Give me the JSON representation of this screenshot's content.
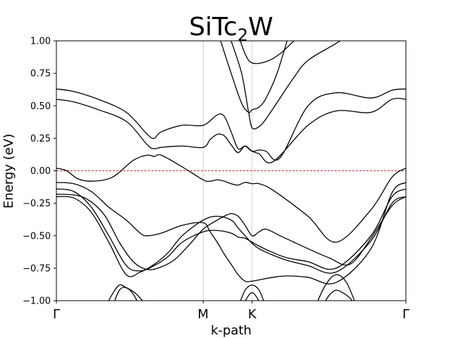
{
  "chart_data": {
    "type": "line",
    "title": {
      "base": "SiTc",
      "sub": "2",
      "tail": "W"
    },
    "xlabel": "k-path",
    "ylabel": "Energy (eV)",
    "ylim": [
      -1.0,
      1.0
    ],
    "xlim": [
      0,
      1
    ],
    "yticks": [
      -1.0,
      -0.75,
      -0.5,
      -0.25,
      0.0,
      0.25,
      0.5,
      0.75,
      1.0
    ],
    "ytick_labels": [
      "−1.00",
      "−0.75",
      "−0.50",
      "−0.25",
      "0.00",
      "0.25",
      "0.50",
      "0.75",
      "1.00"
    ],
    "high_symmetry_points": [
      {
        "label": "Γ",
        "x": 0.0
      },
      {
        "label": "M",
        "x": 0.42
      },
      {
        "label": "K",
        "x": 0.56
      },
      {
        "label": "Γ",
        "x": 1.0
      }
    ],
    "fermi_level": 0.0,
    "fermi_color": "#d62728",
    "band_color": "#000000",
    "grid": false,
    "bands": [
      {
        "x": [
          0.0,
          0.05,
          0.12,
          0.2,
          0.26,
          0.28,
          0.3,
          0.36,
          0.42,
          0.46,
          0.48,
          0.5,
          0.52,
          0.54,
          0.56,
          0.58,
          0.6,
          0.64,
          0.72,
          0.8,
          0.9,
          0.96,
          1.0
        ],
        "y": [
          0.63,
          0.61,
          0.55,
          0.45,
          0.28,
          0.25,
          0.3,
          0.35,
          0.35,
          0.43,
          0.42,
          0.3,
          0.17,
          0.19,
          0.15,
          0.16,
          0.15,
          0.1,
          0.5,
          0.6,
          0.56,
          0.62,
          0.63
        ]
      },
      {
        "x": [
          0.0,
          0.05,
          0.12,
          0.2,
          0.26,
          0.28,
          0.3,
          0.36,
          0.42,
          0.44,
          0.46,
          0.48,
          0.5,
          0.52,
          0.54,
          0.56,
          0.58,
          0.62,
          0.72,
          0.8,
          0.9,
          0.96,
          1.0
        ],
        "y": [
          0.55,
          0.53,
          0.47,
          0.38,
          0.2,
          0.17,
          0.18,
          0.19,
          0.18,
          0.24,
          0.28,
          0.27,
          0.2,
          0.14,
          0.19,
          0.15,
          0.13,
          0.07,
          0.35,
          0.46,
          0.45,
          0.55,
          0.55
        ]
      },
      {
        "x": [
          0.0,
          0.03,
          0.06,
          0.1,
          0.16,
          0.22,
          0.26,
          0.28,
          0.3,
          0.36,
          0.42,
          0.44,
          0.46,
          0.48,
          0.5,
          0.52,
          0.54,
          0.56,
          0.58,
          0.62,
          0.72,
          0.8,
          0.9,
          0.96,
          1.0
        ],
        "y": [
          0.02,
          0.0,
          -0.06,
          -0.08,
          -0.05,
          0.08,
          0.12,
          0.11,
          0.12,
          0.03,
          -0.07,
          -0.08,
          -0.07,
          -0.08,
          -0.1,
          -0.11,
          -0.09,
          -0.1,
          -0.1,
          -0.15,
          -0.35,
          -0.55,
          -0.3,
          -0.05,
          0.02
        ]
      },
      {
        "x": [
          0.0,
          0.05,
          0.1,
          0.15,
          0.2,
          0.24,
          0.26,
          0.3,
          0.36,
          0.42,
          0.44,
          0.46,
          0.48,
          0.5,
          0.52,
          0.54,
          0.56,
          0.58,
          0.62,
          0.66,
          0.72,
          0.8,
          0.9,
          0.96,
          1.0
        ],
        "y": [
          -0.09,
          -0.1,
          -0.16,
          -0.28,
          -0.38,
          -0.48,
          -0.5,
          -0.48,
          -0.42,
          -0.4,
          -0.47,
          -0.55,
          -0.64,
          -0.72,
          -0.8,
          -0.85,
          -0.85,
          -0.84,
          -0.82,
          -0.81,
          -0.82,
          -0.86,
          -0.6,
          -0.17,
          -0.09
        ]
      },
      {
        "x": [
          0.0,
          0.05,
          0.1,
          0.15,
          0.2,
          0.24,
          0.28,
          0.32,
          0.36,
          0.42,
          0.46,
          0.5,
          0.52,
          0.54,
          0.56,
          0.58,
          0.62,
          0.66,
          0.72,
          0.8,
          0.9,
          0.96,
          1.0
        ],
        "y": [
          -0.14,
          -0.16,
          -0.28,
          -0.5,
          -0.73,
          -0.77,
          -0.73,
          -0.66,
          -0.55,
          -0.47,
          -0.46,
          -0.48,
          -0.51,
          -0.52,
          -0.55,
          -0.58,
          -0.63,
          -0.67,
          -0.7,
          -0.75,
          -0.5,
          -0.2,
          -0.14
        ]
      },
      {
        "x": [
          0.0,
          0.05,
          0.1,
          0.15,
          0.2,
          0.24,
          0.28,
          0.32,
          0.36,
          0.42,
          0.46,
          0.5,
          0.52,
          0.54,
          0.56,
          0.58,
          0.62,
          0.66,
          0.72,
          0.8,
          0.9,
          0.96,
          1.0
        ],
        "y": [
          -0.2,
          -0.21,
          -0.32,
          -0.55,
          -0.8,
          -0.78,
          -0.72,
          -0.63,
          -0.5,
          -0.38,
          -0.35,
          -0.38,
          -0.44,
          -0.5,
          -0.56,
          -0.6,
          -0.65,
          -0.69,
          -0.73,
          -0.78,
          -0.54,
          -0.25,
          -0.2
        ]
      },
      {
        "x": [
          0.0,
          0.06,
          0.1,
          0.14,
          0.18,
          0.22,
          0.26,
          0.3,
          0.34,
          0.38,
          0.42,
          0.46,
          0.48,
          0.5,
          0.52,
          0.54,
          0.56,
          0.58,
          0.6,
          0.64,
          0.68,
          0.72,
          0.78,
          0.84,
          0.9,
          0.96,
          1.0
        ],
        "y": [
          -0.18,
          -0.19,
          -0.24,
          -0.35,
          -0.55,
          -0.7,
          -0.76,
          -0.74,
          -0.68,
          -0.57,
          -0.45,
          -0.38,
          -0.35,
          -0.33,
          -0.35,
          -0.42,
          -0.5,
          -0.47,
          -0.45,
          -0.5,
          -0.55,
          -0.6,
          -0.67,
          -0.72,
          -0.52,
          -0.27,
          -0.2
        ]
      },
      {
        "x": [
          0.47,
          0.5,
          0.53,
          0.55,
          0.56,
          0.58,
          0.6,
          0.63,
          0.66
        ],
        "y": [
          1.0,
          0.75,
          0.52,
          0.45,
          0.47,
          0.49,
          0.56,
          0.74,
          1.0
        ]
      },
      {
        "x": [
          0.5,
          0.53,
          0.55,
          0.56,
          0.58,
          0.6,
          0.64,
          0.68,
          0.72,
          0.8,
          0.9,
          0.96,
          1.0
        ],
        "y": [
          1.0,
          0.75,
          0.45,
          0.33,
          0.34,
          0.4,
          0.56,
          0.72,
          0.85,
          0.98,
          1.15,
          1.25,
          1.3
        ]
      },
      {
        "x": [
          0.52,
          0.54,
          0.56,
          0.6,
          0.64,
          0.68,
          0.72,
          0.8
        ],
        "y": [
          1.05,
          0.9,
          0.83,
          0.84,
          0.9,
          1.0,
          1.08,
          1.2
        ]
      },
      {
        "x": [
          0.14,
          0.16,
          0.18,
          0.2,
          0.22,
          0.24,
          0.26
        ],
        "y": [
          -1.05,
          -0.95,
          -0.88,
          -0.9,
          -0.93,
          -0.98,
          -1.05
        ]
      },
      {
        "x": [
          0.16,
          0.18,
          0.2,
          0.22,
          0.24
        ],
        "y": [
          -1.05,
          -0.92,
          -0.9,
          -0.95,
          -1.05
        ]
      },
      {
        "x": [
          0.52,
          0.54,
          0.56,
          0.58,
          0.6
        ],
        "y": [
          -1.05,
          -0.92,
          -0.88,
          -0.92,
          -1.05
        ]
      },
      {
        "x": [
          0.53,
          0.55,
          0.56,
          0.57,
          0.59
        ],
        "y": [
          -1.05,
          -0.96,
          -0.94,
          -0.96,
          -1.05
        ]
      },
      {
        "x": [
          0.74,
          0.77,
          0.8,
          0.83,
          0.86
        ],
        "y": [
          -1.05,
          -0.88,
          -0.8,
          -0.86,
          -1.05
        ]
      },
      {
        "x": [
          0.76,
          0.78,
          0.8,
          0.82,
          0.84,
          0.86
        ],
        "y": [
          -1.05,
          -0.96,
          -0.92,
          -0.94,
          -0.98,
          -1.05
        ]
      }
    ]
  }
}
